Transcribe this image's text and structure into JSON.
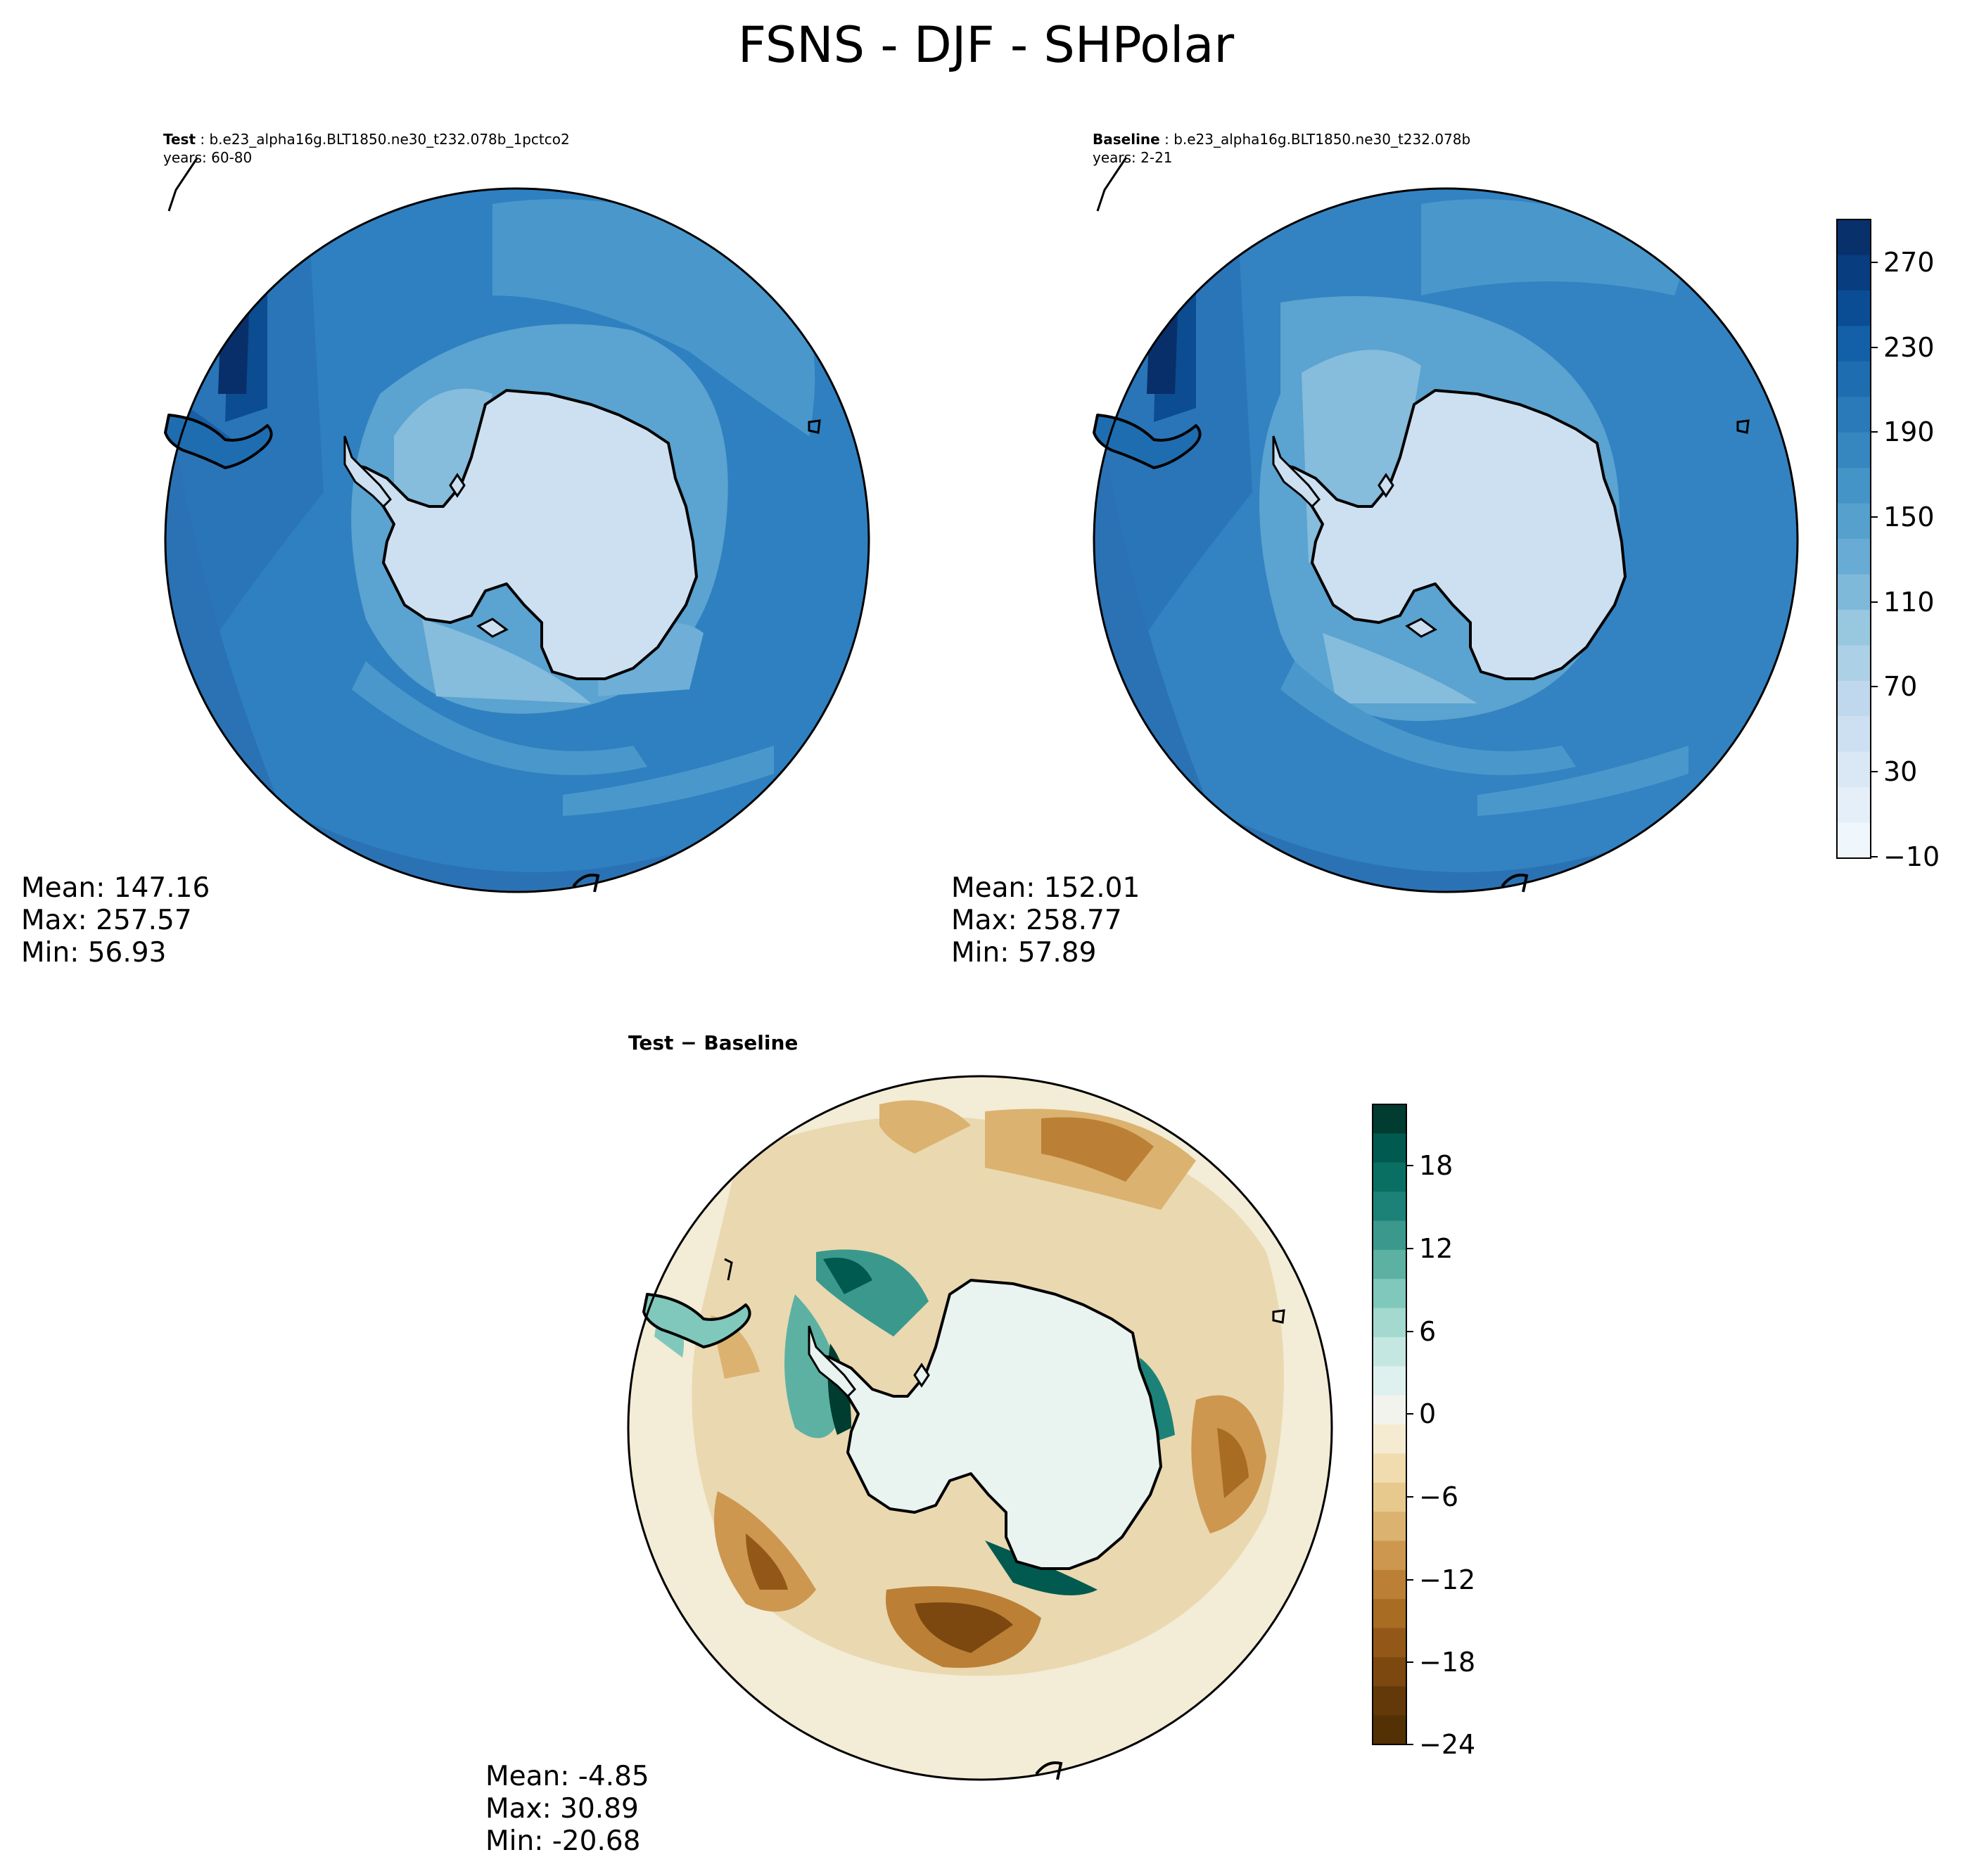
{
  "figure": {
    "title": "FSNS - DJF - SHPolar"
  },
  "panels": {
    "test": {
      "label": "Test",
      "case": "b.e23_alpha16g.BLT1850.ne30_t232.078b_1pctco2",
      "years": "years: 60-80",
      "stats": {
        "mean": "Mean: 147.16",
        "max": "Max: 257.57",
        "min": "Min: 56.93"
      }
    },
    "baseline": {
      "label": "Baseline",
      "case": "b.e23_alpha16g.BLT1850.ne30_t232.078b",
      "years": "years: 2-21",
      "stats": {
        "mean": "Mean: 152.01",
        "max": "Max: 258.77",
        "min": "Min: 57.89"
      }
    },
    "diff": {
      "label": "Test − Baseline",
      "stats": {
        "mean": "Mean: -4.85",
        "max": "Max: 30.89",
        "min": "Min: -20.68"
      }
    }
  },
  "chart_data": [
    {
      "type": "heatmap",
      "projection": "south polar stereographic",
      "title": "Test : b.e23_alpha16g.BLT1850.ne30_t232.078b_1pctco2",
      "variable": "FSNS",
      "season": "DJF",
      "region": "SHPolar",
      "mean": 147.16,
      "max": 257.57,
      "min": 56.93,
      "colorbar_ticks": [
        -10,
        30,
        70,
        110,
        150,
        190,
        230,
        270
      ],
      "colorbar_range": [
        -10,
        290
      ],
      "colormap": "Blues"
    },
    {
      "type": "heatmap",
      "projection": "south polar stereographic",
      "title": "Baseline : b.e23_alpha16g.BLT1850.ne30_t232.078b",
      "variable": "FSNS",
      "season": "DJF",
      "region": "SHPolar",
      "mean": 152.01,
      "max": 258.77,
      "min": 57.89,
      "colorbar_ticks": [
        -10,
        30,
        70,
        110,
        150,
        190,
        230,
        270
      ],
      "colorbar_range": [
        -10,
        290
      ],
      "colormap": "Blues"
    },
    {
      "type": "heatmap",
      "projection": "south polar stereographic",
      "title": "Test − Baseline",
      "mean": -4.85,
      "max": 30.89,
      "min": -20.68,
      "colorbar_ticks": [
        -24,
        -18,
        -12,
        -6,
        0,
        6,
        12,
        18
      ],
      "colorbar_range": [
        -24,
        22
      ],
      "colormap": "BrBG"
    }
  ],
  "colorbars": {
    "top": {
      "ticks": [
        "270",
        "230",
        "190",
        "150",
        "110",
        "70",
        "30",
        "−10"
      ],
      "colors": [
        "#08306b",
        "#083d7f",
        "#0a4d95",
        "#1360a8",
        "#1f6db1",
        "#2a7ab9",
        "#3686c0",
        "#4594c7",
        "#56a0ce",
        "#68acd5",
        "#7fb9da",
        "#98c7e0",
        "#acd0e6",
        "#bfd8ed",
        "#cde0f1",
        "#dae8f6",
        "#e4eff9",
        "#eff6fc"
      ]
    },
    "diff": {
      "ticks": [
        "18",
        "12",
        "6",
        "0",
        "−6",
        "−12",
        "−18",
        "−24"
      ],
      "colors": [
        "#003c30",
        "#015a4f",
        "#0a6f63",
        "#1c8277",
        "#3a998c",
        "#5cb1a3",
        "#80c8bb",
        "#a3d9cf",
        "#c4e7e1",
        "#dff1ee",
        "#f3f3ee",
        "#f5ebd0",
        "#f0dcae",
        "#e7c98d",
        "#dbb26f",
        "#cd9750",
        "#bb8036",
        "#a86c23",
        "#935818",
        "#7c4810",
        "#643909",
        "#543005"
      ]
    }
  }
}
